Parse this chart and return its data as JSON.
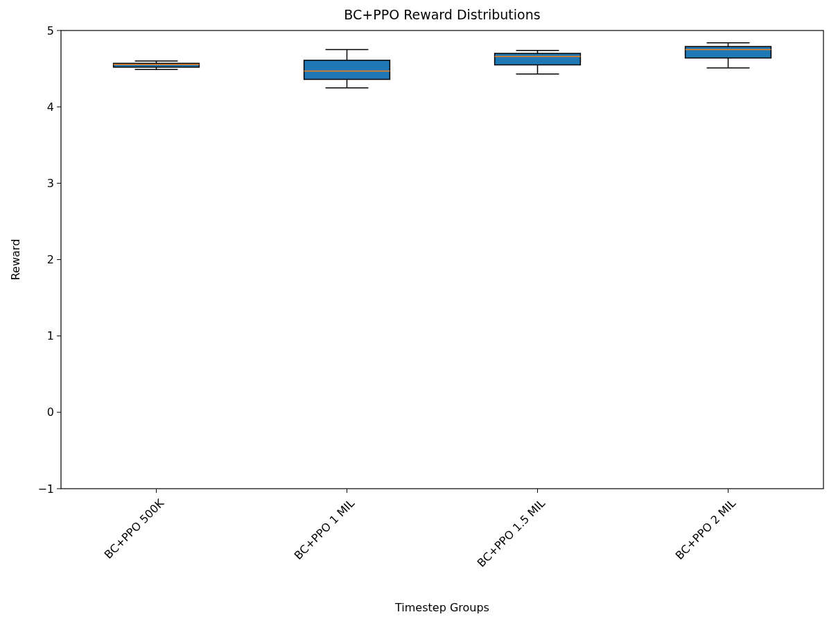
{
  "chart_data": {
    "type": "box",
    "title": "BC+PPO Reward Distributions",
    "xlabel": "Timestep Groups",
    "ylabel": "Reward",
    "categories": [
      "BC+PPO 500K",
      "BC+PPO 1 MIL",
      "BC+PPO 1.5 MIL",
      "BC+PPO 2 MIL"
    ],
    "color": "#1f77b4",
    "boxes": [
      {
        "low": 4.49,
        "q1": 4.52,
        "median": 4.555,
        "q3": 4.57,
        "high": 4.6
      },
      {
        "low": 4.25,
        "q1": 4.36,
        "median": 4.47,
        "q3": 4.61,
        "high": 4.75
      },
      {
        "low": 4.43,
        "q1": 4.55,
        "median": 4.66,
        "q3": 4.7,
        "high": 4.74
      },
      {
        "low": 4.51,
        "q1": 4.64,
        "median": 4.75,
        "q3": 4.79,
        "high": 4.84
      }
    ],
    "ylim": [
      -1,
      5
    ],
    "yticks": [
      -1,
      0,
      1,
      2,
      3,
      4,
      5
    ],
    "grid": false
  }
}
